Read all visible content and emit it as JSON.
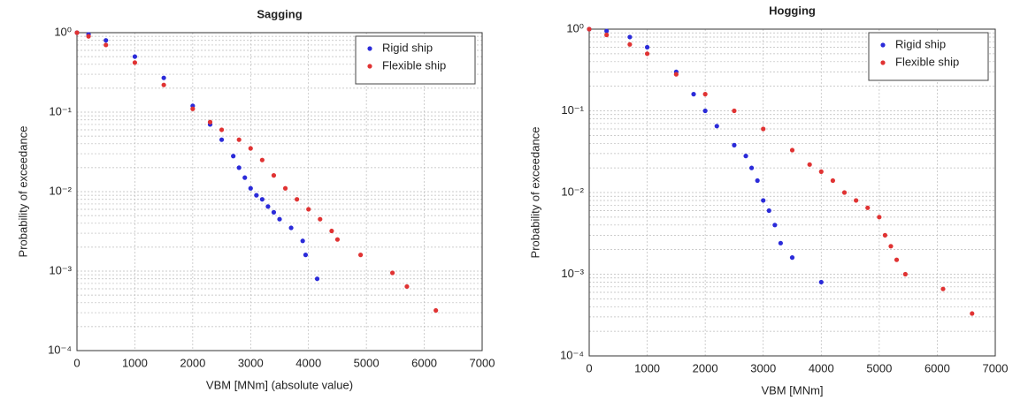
{
  "chart_data": [
    {
      "type": "scatter",
      "title": "Sagging",
      "xlabel": "VBM [MNm] (absolute value)",
      "ylabel": "Probability of exceedance",
      "xlim": [
        0,
        7000
      ],
      "xticks": [
        0,
        1000,
        2000,
        3000,
        4000,
        5000,
        6000,
        7000
      ],
      "ylim": [
        0.0001,
        1
      ],
      "log_y": true,
      "grid": true,
      "legend": "upper right",
      "yticks": [
        {
          "value": 0.0001,
          "label": "10⁻⁴"
        },
        {
          "value": 0.001,
          "label": "10⁻³"
        },
        {
          "value": 0.01,
          "label": "10⁻²"
        },
        {
          "value": 0.1,
          "label": "10⁻¹"
        },
        {
          "value": 1,
          "label": "10⁰"
        }
      ],
      "series": [
        {
          "name": "Rigid ship",
          "color": "#2b2bd9",
          "x": [
            0,
            200,
            500,
            1000,
            1500,
            2000,
            2300,
            2500,
            2700,
            2800,
            2900,
            3000,
            3100,
            3200,
            3300,
            3400,
            3500,
            3700,
            3900,
            3950,
            4150
          ],
          "values": [
            1,
            0.95,
            0.8,
            0.5,
            0.27,
            0.12,
            0.07,
            0.045,
            0.028,
            0.02,
            0.015,
            0.011,
            0.009,
            0.008,
            0.0065,
            0.0055,
            0.0045,
            0.0035,
            0.0024,
            0.0016,
            0.0008
          ]
        },
        {
          "name": "Flexible ship",
          "color": "#e03333",
          "x": [
            0,
            200,
            500,
            1000,
            1500,
            2000,
            2300,
            2500,
            2800,
            3000,
            3200,
            3400,
            3600,
            3800,
            4000,
            4200,
            4400,
            4500,
            4900,
            5450,
            5700,
            6200
          ],
          "values": [
            1,
            0.9,
            0.7,
            0.42,
            0.22,
            0.11,
            0.075,
            0.06,
            0.045,
            0.035,
            0.025,
            0.016,
            0.011,
            0.008,
            0.006,
            0.0045,
            0.0032,
            0.0025,
            0.0016,
            0.00095,
            0.00064,
            0.00032
          ]
        }
      ]
    },
    {
      "type": "scatter",
      "title": "Hogging",
      "xlabel": "VBM [MNm]",
      "ylabel": "Probability of exceedance",
      "xlim": [
        0,
        7000
      ],
      "xticks": [
        0,
        1000,
        2000,
        3000,
        4000,
        5000,
        6000,
        7000
      ],
      "ylim": [
        0.0001,
        1
      ],
      "log_y": true,
      "grid": true,
      "legend": "upper right",
      "yticks": [
        {
          "value": 0.0001,
          "label": "10⁻⁴"
        },
        {
          "value": 0.001,
          "label": "10⁻³"
        },
        {
          "value": 0.01,
          "label": "10⁻²"
        },
        {
          "value": 0.1,
          "label": "10⁻¹"
        },
        {
          "value": 1,
          "label": "10⁰"
        }
      ],
      "series": [
        {
          "name": "Rigid ship",
          "color": "#2b2bd9",
          "x": [
            0,
            300,
            700,
            1000,
            1500,
            1800,
            2000,
            2200,
            2500,
            2700,
            2800,
            2900,
            3000,
            3100,
            3200,
            3300,
            3500,
            4000
          ],
          "values": [
            1,
            0.95,
            0.8,
            0.6,
            0.3,
            0.16,
            0.1,
            0.065,
            0.038,
            0.028,
            0.02,
            0.014,
            0.008,
            0.006,
            0.004,
            0.0024,
            0.0016,
            0.0008
          ]
        },
        {
          "name": "Flexible ship",
          "color": "#e03333",
          "x": [
            0,
            300,
            700,
            1000,
            1500,
            2000,
            2500,
            3000,
            3500,
            3800,
            4000,
            4200,
            4400,
            4600,
            4800,
            5000,
            5100,
            5200,
            5300,
            5450,
            6100,
            6600
          ],
          "values": [
            1,
            0.85,
            0.65,
            0.5,
            0.28,
            0.16,
            0.1,
            0.06,
            0.033,
            0.022,
            0.018,
            0.014,
            0.01,
            0.008,
            0.0065,
            0.005,
            0.003,
            0.0022,
            0.0015,
            0.001,
            0.00066,
            0.00033
          ]
        }
      ]
    }
  ]
}
